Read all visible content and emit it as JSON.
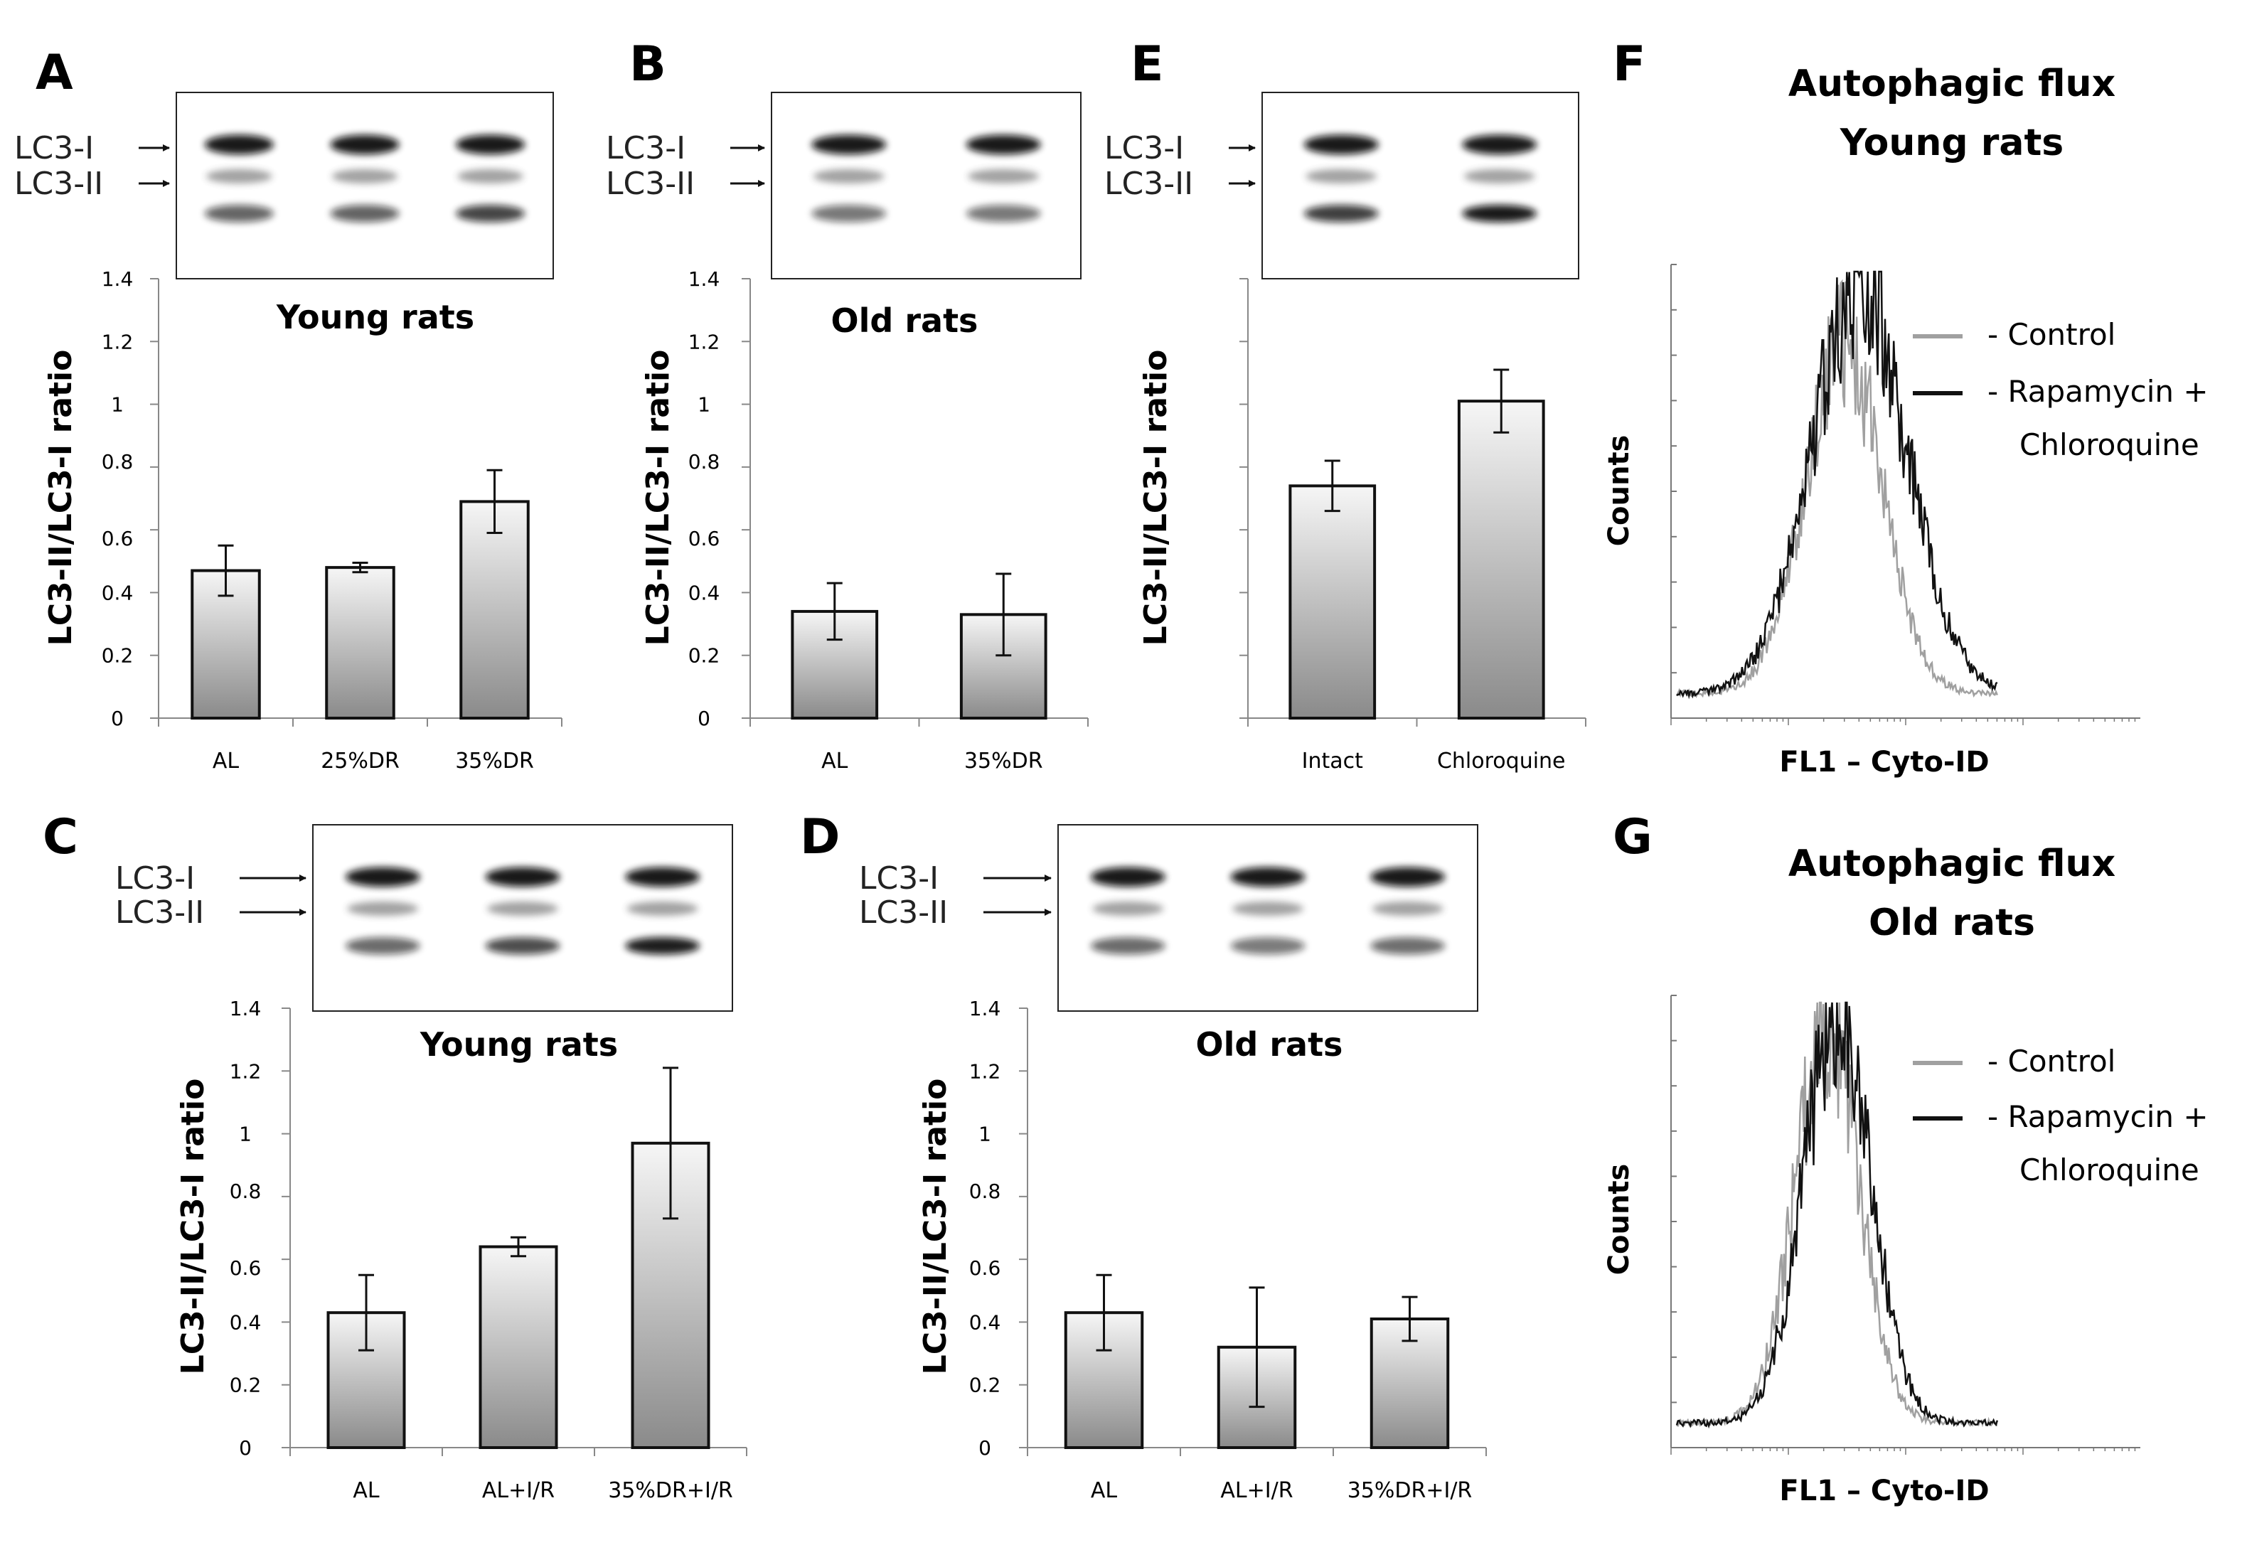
{
  "blot_labels": {
    "band1": "LC3-I",
    "band2": "LC3-II"
  },
  "chart_data": [
    {
      "type": "bar",
      "panel": "A",
      "title": "Young rats",
      "ylabel": "LC3-II/LC3-I ratio",
      "categories": [
        "AL",
        "25%DR",
        "35%DR"
      ],
      "values": [
        0.47,
        0.48,
        0.69
      ],
      "errors": [
        0.08,
        0.015,
        0.1
      ],
      "ylim": [
        0,
        1.4
      ],
      "ticks": [
        "0",
        "0.2",
        "0.4",
        "0.6",
        "0.8",
        "1",
        "1.2",
        "1.4"
      ],
      "blot_lanes": 3
    },
    {
      "type": "bar",
      "panel": "B",
      "title": "Old rats",
      "ylabel": "LC3-II/LC3-I ratio",
      "categories": [
        "AL",
        "35%DR"
      ],
      "values": [
        0.34,
        0.33
      ],
      "errors": [
        0.09,
        0.13
      ],
      "ylim": [
        0,
        1.4
      ],
      "ticks": [
        "0",
        "0.2",
        "0.4",
        "0.6",
        "0.8",
        "1",
        "1.2",
        "1.4"
      ],
      "blot_lanes": 2
    },
    {
      "type": "bar",
      "panel": "E",
      "title": "",
      "ylabel": "LC3-II/LC3-I ratio",
      "categories": [
        "Intact",
        "Chloroquine"
      ],
      "values": [
        0.74,
        1.01
      ],
      "errors": [
        0.08,
        0.1
      ],
      "ylim": [
        0,
        1.4
      ],
      "ticks": [],
      "blot_lanes": 2
    },
    {
      "type": "bar",
      "panel": "C",
      "title": "Young rats",
      "ylabel": "LC3-II/LC3-I ratio",
      "categories": [
        "AL",
        "AL+I/R",
        "35%DR+I/R"
      ],
      "values": [
        0.43,
        0.64,
        0.97
      ],
      "errors": [
        0.12,
        0.03,
        0.24
      ],
      "ylim": [
        0,
        1.4
      ],
      "ticks": [
        "0",
        "0.2",
        "0.4",
        "0.6",
        "0.8",
        "1",
        "1.2",
        "1.4"
      ],
      "blot_lanes": 3
    },
    {
      "type": "bar",
      "panel": "D",
      "title": "Old rats",
      "ylabel": "LC3-II/LC3-I ratio",
      "categories": [
        "AL",
        "AL+I/R",
        "35%DR+I/R"
      ],
      "values": [
        0.43,
        0.32,
        0.41
      ],
      "errors": [
        0.12,
        0.19,
        0.07
      ],
      "ylim": [
        0,
        1.4
      ],
      "ticks": [
        "0",
        "0.2",
        "0.4",
        "0.6",
        "0.8",
        "1",
        "1.2",
        "1.4"
      ],
      "blot_lanes": 3
    },
    {
      "type": "line",
      "panel": "F",
      "title": [
        "Autophagic flux",
        "Young rats"
      ],
      "xlabel": "FL1 – Cyto-ID",
      "ylabel": "Counts",
      "series": [
        {
          "name": "- Control",
          "color": "#a0a0a0",
          "peak": 0.52,
          "width": 0.24,
          "height": 0.8
        },
        {
          "name": "- Rapamycin +",
          "color": "#111111",
          "peak": 0.57,
          "width": 0.3,
          "height": 0.92
        }
      ],
      "legend_extra": "Chloroquine"
    },
    {
      "type": "line",
      "panel": "G",
      "title": [
        "Autophagic flux",
        "Old rats"
      ],
      "xlabel": "FL1 – Cyto-ID",
      "ylabel": "Counts",
      "series": [
        {
          "name": "- Control",
          "color": "#a0a0a0",
          "peak": 0.47,
          "width": 0.2,
          "height": 0.9
        },
        {
          "name": "- Rapamycin +",
          "color": "#111111",
          "peak": 0.5,
          "width": 0.21,
          "height": 0.92
        }
      ],
      "legend_extra": "Chloroquine"
    }
  ]
}
